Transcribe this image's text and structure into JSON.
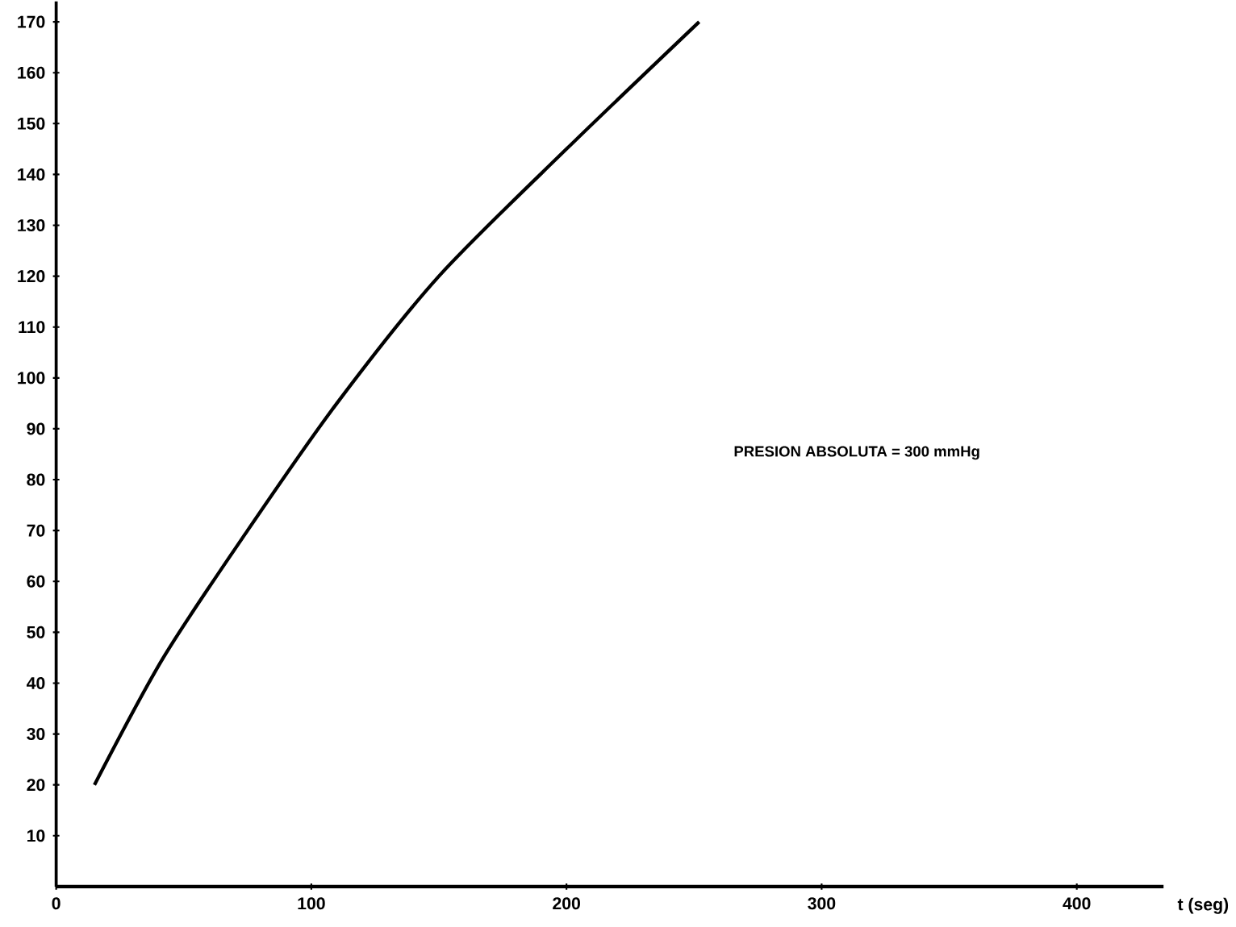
{
  "chart_data": {
    "type": "line",
    "xlabel": "t (seg)",
    "annotations": [
      "PRESION ABSOLUTA = 300 mmHg"
    ],
    "x": [
      15,
      42,
      75,
      110,
      150,
      200,
      252
    ],
    "series": [
      {
        "color": "#000000",
        "values": [
          20,
          45,
          70,
          95,
          120,
          145,
          170
        ]
      }
    ],
    "xlim": [
      0,
      434
    ],
    "ylim": [
      0,
      174
    ],
    "xticks": [
      0,
      100,
      200,
      300,
      400
    ],
    "yticks": [
      10,
      20,
      30,
      40,
      50,
      60,
      70,
      80,
      90,
      100,
      110,
      120,
      130,
      140,
      150,
      160,
      170
    ],
    "grid": false
  }
}
